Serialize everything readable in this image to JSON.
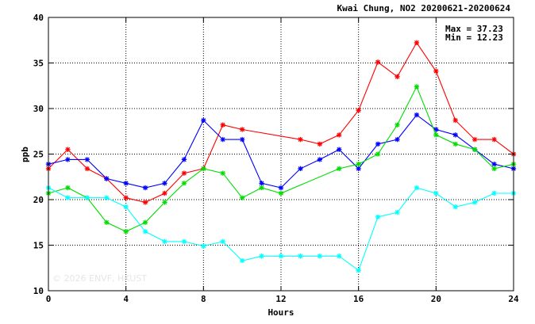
{
  "chart_data": {
    "type": "line",
    "title": "Kwai Chung, NO2 20200621-20200624",
    "xlabel": "Hours",
    "ylabel": "ppb",
    "xlim": [
      0,
      24
    ],
    "ylim": [
      10,
      40
    ],
    "xticks": [
      0,
      4,
      8,
      12,
      16,
      20,
      24
    ],
    "xtick_labels": [
      "0",
      "4",
      "8",
      "12",
      "16",
      "20",
      "24"
    ],
    "yticks": [
      10,
      15,
      20,
      25,
      30,
      35,
      40
    ],
    "ytick_labels": [
      "10",
      "15",
      "20",
      "25",
      "30",
      "35",
      "40"
    ],
    "grid": true,
    "grid_style": "dotted",
    "stats": {
      "max_text": "Max = 37.23",
      "min_text": "Min = 12.23"
    },
    "watermark": "© 2026  ENVF, HKUST",
    "series": [
      {
        "color": "#ff0000",
        "points": [
          [
            0,
            23.4
          ],
          [
            1,
            25.5
          ],
          [
            2,
            23.4
          ],
          [
            3,
            22.3
          ],
          [
            4,
            20.2
          ],
          [
            5,
            19.7
          ],
          [
            6,
            20.7
          ],
          [
            7,
            22.9
          ],
          [
            8,
            23.4
          ],
          [
            9,
            28.2
          ],
          [
            10,
            27.7
          ],
          [
            13,
            26.6
          ],
          [
            14,
            26.1
          ],
          [
            15,
            27.1
          ],
          [
            16,
            29.8
          ],
          [
            17,
            35.1
          ],
          [
            18,
            33.5
          ],
          [
            19,
            37.23
          ],
          [
            20,
            34.1
          ],
          [
            21,
            28.7
          ],
          [
            22,
            26.6
          ],
          [
            23,
            26.6
          ],
          [
            24,
            25.0
          ]
        ]
      },
      {
        "color": "#0000ff",
        "points": [
          [
            0,
            23.9
          ],
          [
            1,
            24.4
          ],
          [
            2,
            24.4
          ],
          [
            3,
            22.3
          ],
          [
            4,
            21.8
          ],
          [
            5,
            21.3
          ],
          [
            6,
            21.8
          ],
          [
            7,
            24.4
          ],
          [
            8,
            28.7
          ],
          [
            9,
            26.6
          ],
          [
            10,
            26.6
          ],
          [
            11,
            21.8
          ],
          [
            12,
            21.3
          ],
          [
            13,
            23.4
          ],
          [
            14,
            24.4
          ],
          [
            15,
            25.5
          ],
          [
            16,
            23.4
          ],
          [
            17,
            26.1
          ],
          [
            18,
            26.6
          ],
          [
            19,
            29.3
          ],
          [
            20,
            27.7
          ],
          [
            21,
            27.1
          ],
          [
            22,
            25.5
          ],
          [
            23,
            23.9
          ],
          [
            24,
            23.4
          ]
        ]
      },
      {
        "color": "#00dd00",
        "points": [
          [
            0,
            20.7
          ],
          [
            1,
            21.3
          ],
          [
            2,
            20.2
          ],
          [
            3,
            17.5
          ],
          [
            4,
            16.5
          ],
          [
            5,
            17.5
          ],
          [
            6,
            19.7
          ],
          [
            7,
            21.8
          ],
          [
            8,
            23.4
          ],
          [
            9,
            22.9
          ],
          [
            10,
            20.2
          ],
          [
            11,
            21.3
          ],
          [
            12,
            20.7
          ],
          [
            15,
            23.4
          ],
          [
            16,
            23.9
          ],
          [
            17,
            25.0
          ],
          [
            18,
            28.2
          ],
          [
            19,
            32.4
          ],
          [
            20,
            27.1
          ],
          [
            21,
            26.1
          ],
          [
            22,
            25.5
          ],
          [
            23,
            23.4
          ],
          [
            24,
            23.9
          ]
        ]
      },
      {
        "color": "#00ffff",
        "points": [
          [
            0,
            21.3
          ],
          [
            1,
            20.2
          ],
          [
            2,
            20.2
          ],
          [
            3,
            20.2
          ],
          [
            4,
            19.2
          ],
          [
            5,
            16.5
          ],
          [
            6,
            15.4
          ],
          [
            7,
            15.4
          ],
          [
            8,
            14.9
          ],
          [
            9,
            15.4
          ],
          [
            10,
            13.3
          ],
          [
            11,
            13.8
          ],
          [
            12,
            13.8
          ],
          [
            13,
            13.8
          ],
          [
            14,
            13.8
          ],
          [
            15,
            13.8
          ],
          [
            16,
            12.23
          ],
          [
            17,
            18.1
          ],
          [
            18,
            18.6
          ],
          [
            19,
            21.3
          ],
          [
            20,
            20.7
          ],
          [
            21,
            19.2
          ],
          [
            22,
            19.7
          ],
          [
            23,
            20.7
          ],
          [
            24,
            20.7
          ]
        ]
      }
    ]
  }
}
